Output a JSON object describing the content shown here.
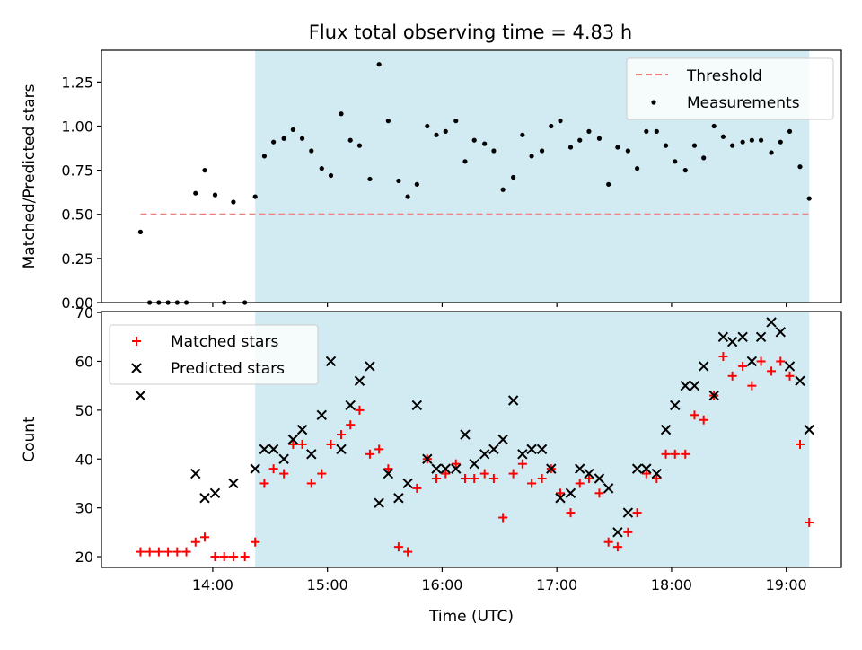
{
  "chart_data": {
    "title": "Flux total observing time = 4.83 h",
    "shaded_region": {
      "x_start_hours": 14.37,
      "x_end_hours": 19.2,
      "color": "#add8e6"
    },
    "x_axis": {
      "label": "Time (UTC)",
      "range_hours": [
        13.03,
        19.48
      ],
      "ticks": [
        {
          "value": 14,
          "label": "14:00"
        },
        {
          "value": 15,
          "label": "15:00"
        },
        {
          "value": 16,
          "label": "16:00"
        },
        {
          "value": 17,
          "label": "17:00"
        },
        {
          "value": 18,
          "label": "18:00"
        },
        {
          "value": 19,
          "label": "19:00"
        }
      ]
    },
    "panels": [
      {
        "type": "scatter",
        "ylabel": "Matched/Predicted stars",
        "ylim": [
          0,
          1.43
        ],
        "yticks": [
          {
            "value": 0,
            "label": "0.00"
          },
          {
            "value": 0.25,
            "label": "0.25"
          },
          {
            "value": 0.5,
            "label": "0.50"
          },
          {
            "value": 0.75,
            "label": "0.75"
          },
          {
            "value": 1.0,
            "label": "1.00"
          },
          {
            "value": 1.25,
            "label": "1.25"
          }
        ],
        "legend": {
          "position": "top-right",
          "entries": [
            "Threshold",
            "Measurements"
          ]
        },
        "threshold": {
          "name": "Threshold",
          "value": 0.5,
          "x_start": 13.37,
          "x_end": 19.2,
          "color": "#f08080"
        },
        "series": [
          {
            "name": "Measurements",
            "marker": "dot",
            "color": "#000000",
            "x": [
              13.37,
              13.45,
              13.53,
              13.61,
              13.69,
              13.77,
              13.85,
              13.93,
              14.02,
              14.1,
              14.18,
              14.28,
              14.37,
              14.45,
              14.53,
              14.62,
              14.7,
              14.78,
              14.86,
              14.95,
              15.03,
              15.12,
              15.2,
              15.28,
              15.37,
              15.45,
              15.53,
              15.62,
              15.7,
              15.78,
              15.87,
              15.95,
              16.03,
              16.12,
              16.2,
              16.28,
              16.37,
              16.45,
              16.53,
              16.62,
              16.7,
              16.78,
              16.87,
              16.95,
              17.03,
              17.12,
              17.2,
              17.28,
              17.37,
              17.45,
              17.53,
              17.62,
              17.7,
              17.78,
              17.87,
              17.95,
              18.03,
              18.12,
              18.2,
              18.28,
              18.37,
              18.45,
              18.53,
              18.62,
              18.7,
              18.78,
              18.87,
              18.95,
              19.03,
              19.12,
              19.2
            ],
            "y": [
              0.4,
              0,
              0,
              0,
              0,
              0,
              0.62,
              0.75,
              0.61,
              0,
              0.57,
              0,
              0.6,
              0.83,
              0.91,
              0.93,
              0.98,
              0.93,
              0.86,
              0.76,
              0.72,
              1.07,
              0.92,
              0.89,
              0.7,
              1.35,
              1.03,
              0.69,
              0.6,
              0.67,
              1.0,
              0.95,
              0.97,
              1.03,
              0.8,
              0.92,
              0.9,
              0.86,
              0.64,
              0.71,
              0.95,
              0.83,
              0.86,
              1.0,
              1.03,
              0.88,
              0.92,
              0.97,
              0.93,
              0.67,
              0.88,
              0.86,
              0.76,
              0.97,
              0.97,
              0.89,
              0.8,
              0.75,
              0.89,
              0.82,
              1.0,
              0.94,
              0.89,
              0.91,
              0.92,
              0.92,
              0.85,
              0.91,
              0.97,
              0.77,
              0.59
            ]
          }
        ]
      },
      {
        "type": "scatter",
        "ylabel": "Count",
        "ylim": [
          17.8,
          70.2
        ],
        "yticks": [
          {
            "value": 20,
            "label": "20"
          },
          {
            "value": 30,
            "label": "30"
          },
          {
            "value": 40,
            "label": "40"
          },
          {
            "value": 50,
            "label": "50"
          },
          {
            "value": 60,
            "label": "60"
          },
          {
            "value": 70,
            "label": "70"
          }
        ],
        "legend": {
          "position": "top-left",
          "entries": [
            "Matched stars",
            "Predicted stars"
          ]
        },
        "series": [
          {
            "name": "Matched stars",
            "marker": "plus",
            "color": "#ff0000",
            "x": [
              13.37,
              13.45,
              13.53,
              13.61,
              13.69,
              13.77,
              13.85,
              13.93,
              14.02,
              14.1,
              14.18,
              14.28,
              14.37,
              14.45,
              14.53,
              14.62,
              14.7,
              14.78,
              14.86,
              14.95,
              15.03,
              15.12,
              15.2,
              15.28,
              15.37,
              15.45,
              15.53,
              15.62,
              15.7,
              15.78,
              15.87,
              15.95,
              16.03,
              16.12,
              16.2,
              16.28,
              16.37,
              16.45,
              16.53,
              16.62,
              16.7,
              16.78,
              16.87,
              16.95,
              17.03,
              17.12,
              17.2,
              17.28,
              17.37,
              17.45,
              17.53,
              17.62,
              17.7,
              17.78,
              17.87,
              17.95,
              18.03,
              18.12,
              18.2,
              18.28,
              18.37,
              18.45,
              18.53,
              18.62,
              18.7,
              18.78,
              18.87,
              18.95,
              19.03,
              19.12,
              19.2
            ],
            "y": [
              21,
              21,
              21,
              21,
              21,
              21,
              23,
              24,
              20,
              20,
              20,
              20,
              23,
              35,
              38,
              37,
              43,
              43,
              35,
              37,
              43,
              45,
              47,
              50,
              41,
              42,
              38,
              22,
              21,
              34,
              40,
              36,
              37,
              39,
              36,
              36,
              37,
              36,
              28,
              37,
              39,
              35,
              36,
              38,
              33,
              29,
              35,
              36,
              33,
              23,
              22,
              25,
              29,
              37,
              36,
              41,
              41,
              41,
              49,
              48,
              53,
              61,
              57,
              59,
              55,
              60,
              58,
              60,
              57,
              43,
              27
            ]
          },
          {
            "name": "Predicted stars",
            "marker": "x",
            "color": "#000000",
            "x": [
              13.37,
              13.85,
              13.93,
              14.02,
              14.18,
              14.37,
              14.45,
              14.53,
              14.62,
              14.7,
              14.78,
              14.86,
              14.95,
              15.03,
              15.12,
              15.2,
              15.28,
              15.37,
              15.45,
              15.53,
              15.62,
              15.7,
              15.78,
              15.87,
              15.95,
              16.03,
              16.12,
              16.2,
              16.28,
              16.37,
              16.45,
              16.53,
              16.62,
              16.7,
              16.78,
              16.87,
              16.95,
              17.03,
              17.12,
              17.2,
              17.28,
              17.37,
              17.45,
              17.53,
              17.62,
              17.7,
              17.78,
              17.87,
              17.95,
              18.03,
              18.12,
              18.2,
              18.28,
              18.37,
              18.45,
              18.53,
              18.62,
              18.7,
              18.78,
              18.87,
              18.95,
              19.03,
              19.12,
              19.2
            ],
            "y": [
              53,
              37,
              32,
              33,
              35,
              38,
              42,
              42,
              40,
              44,
              46,
              41,
              49,
              60,
              42,
              51,
              56,
              59,
              31,
              37,
              32,
              35,
              51,
              40,
              38,
              38,
              38,
              45,
              39,
              41,
              42,
              44,
              52,
              41,
              42,
              42,
              38,
              32,
              33,
              38,
              37,
              36,
              34,
              25,
              29,
              38,
              38,
              37,
              46,
              51,
              55,
              55,
              59,
              53,
              65,
              64,
              65,
              60,
              65,
              68,
              66,
              59,
              56,
              46
            ]
          }
        ]
      }
    ]
  }
}
